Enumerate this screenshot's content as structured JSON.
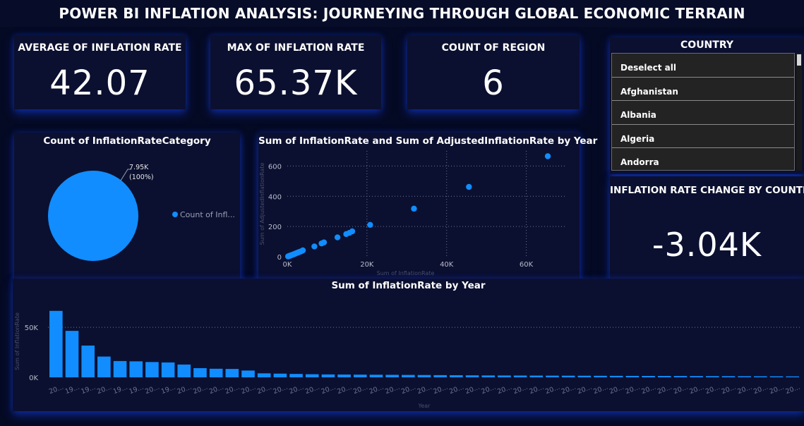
{
  "header": {
    "title": "POWER BI INFLATION ANALYSIS: JOURNEYING THROUGH GLOBAL ECONOMIC TERRAIN"
  },
  "kpis": {
    "avg": {
      "label": "AVERAGE OF INFLATION RATE",
      "value": "42.07"
    },
    "max": {
      "label": "MAX OF INFLATION RATE",
      "value": "65.37K"
    },
    "count": {
      "label": "COUNT OF REGION",
      "value": "6"
    },
    "change": {
      "label": "INFLATION RATE CHANGE BY COUNTRY",
      "value": "-3.04K"
    }
  },
  "slicer": {
    "title": "COUNTRY",
    "items": [
      "Deselect all",
      "Afghanistan",
      "Albania",
      "Algeria",
      "Andorra"
    ]
  },
  "colors": {
    "accent": "#118dff",
    "background": "#050a24",
    "card": "#0b1030"
  },
  "chart_data": [
    {
      "type": "pie",
      "title": "Count of InflationRateCategory",
      "slices": [
        {
          "name": "Count of Infl...",
          "value": 7950,
          "label": "7.95K",
          "percent_label": "(100%)"
        }
      ],
      "legend_placement": "right"
    },
    {
      "type": "scatter",
      "title": "Sum of InflationRate and Sum of AdjustedInflationRate by Year",
      "xlabel": "Sum of InflationRate",
      "ylabel": "Sum of AdjustedInflationRate",
      "xlim": [
        0,
        70000
      ],
      "ylim": [
        0,
        700
      ],
      "xticks": [
        0,
        20000,
        40000,
        60000
      ],
      "xtick_labels": [
        "0K",
        "20K",
        "40K",
        "60K"
      ],
      "yticks": [
        0,
        200,
        400,
        600
      ],
      "ytick_labels": [
        "0",
        "200",
        "400",
        "600"
      ],
      "grid": true,
      "points": [
        [
          65400,
          665
        ],
        [
          45600,
          462
        ],
        [
          31800,
          318
        ],
        [
          20800,
          211
        ],
        [
          16300,
          168
        ],
        [
          15600,
          158
        ],
        [
          14800,
          150
        ],
        [
          12600,
          128
        ],
        [
          9200,
          95
        ],
        [
          8600,
          88
        ],
        [
          6800,
          68
        ],
        [
          3900,
          42
        ],
        [
          3600,
          37
        ],
        [
          3300,
          34
        ],
        [
          3000,
          31
        ],
        [
          2700,
          28
        ],
        [
          2400,
          25
        ],
        [
          2100,
          22
        ],
        [
          1900,
          19
        ],
        [
          1700,
          17
        ],
        [
          1500,
          15
        ],
        [
          1300,
          13
        ],
        [
          1100,
          11
        ],
        [
          900,
          9
        ],
        [
          800,
          8
        ],
        [
          700,
          7
        ],
        [
          600,
          6
        ],
        [
          500,
          5
        ],
        [
          400,
          4
        ],
        [
          300,
          3
        ],
        [
          200,
          2
        ]
      ]
    },
    {
      "type": "bar",
      "title": "Sum of InflationRate by Year",
      "xlabel": "Year",
      "ylabel": "Sum of InflationRate",
      "ylim": [
        0,
        72000
      ],
      "yticks": [
        0,
        50000
      ],
      "ytick_labels": [
        "0K",
        "50K"
      ],
      "categories": [
        "20...",
        "19...",
        "19...",
        "20...",
        "19...",
        "19...",
        "20...",
        "19...",
        "20...",
        "20...",
        "20...",
        "20...",
        "20...",
        "20...",
        "20...",
        "20...",
        "20...",
        "20...",
        "20...",
        "20...",
        "20...",
        "20...",
        "20...",
        "20...",
        "20...",
        "20...",
        "20...",
        "20...",
        "20...",
        "20...",
        "20...",
        "20...",
        "20...",
        "20...",
        "20...",
        "20...",
        "20...",
        "20...",
        "20...",
        "20...",
        "20...",
        "20...",
        "20...",
        "20...",
        "20...",
        "20...",
        "20..."
      ],
      "tick_label_indices": [
        0,
        1,
        2,
        3,
        4,
        5,
        6,
        7,
        8,
        9,
        10,
        11,
        12,
        13,
        14,
        15,
        16,
        17,
        18,
        19,
        20,
        21,
        22,
        23,
        24,
        25,
        26,
        27,
        28,
        29,
        30,
        31,
        32,
        33,
        34,
        35,
        36,
        37,
        38,
        39,
        40,
        41,
        42,
        43,
        44,
        45,
        46
      ],
      "values": [
        66500,
        46500,
        31800,
        20800,
        16300,
        16000,
        15300,
        14900,
        12800,
        9200,
        8600,
        8400,
        6800,
        4000,
        3700,
        3400,
        3100,
        2900,
        2800,
        2700,
        2600,
        2500,
        2400,
        2300,
        2200,
        2100,
        2000,
        1900,
        1850,
        1800,
        1750,
        1700,
        1650,
        1600,
        1550,
        1500,
        1450,
        1400,
        1350,
        1300,
        1250,
        1200,
        1150,
        1100,
        1050,
        1000,
        950
      ],
      "grid": true
    }
  ]
}
